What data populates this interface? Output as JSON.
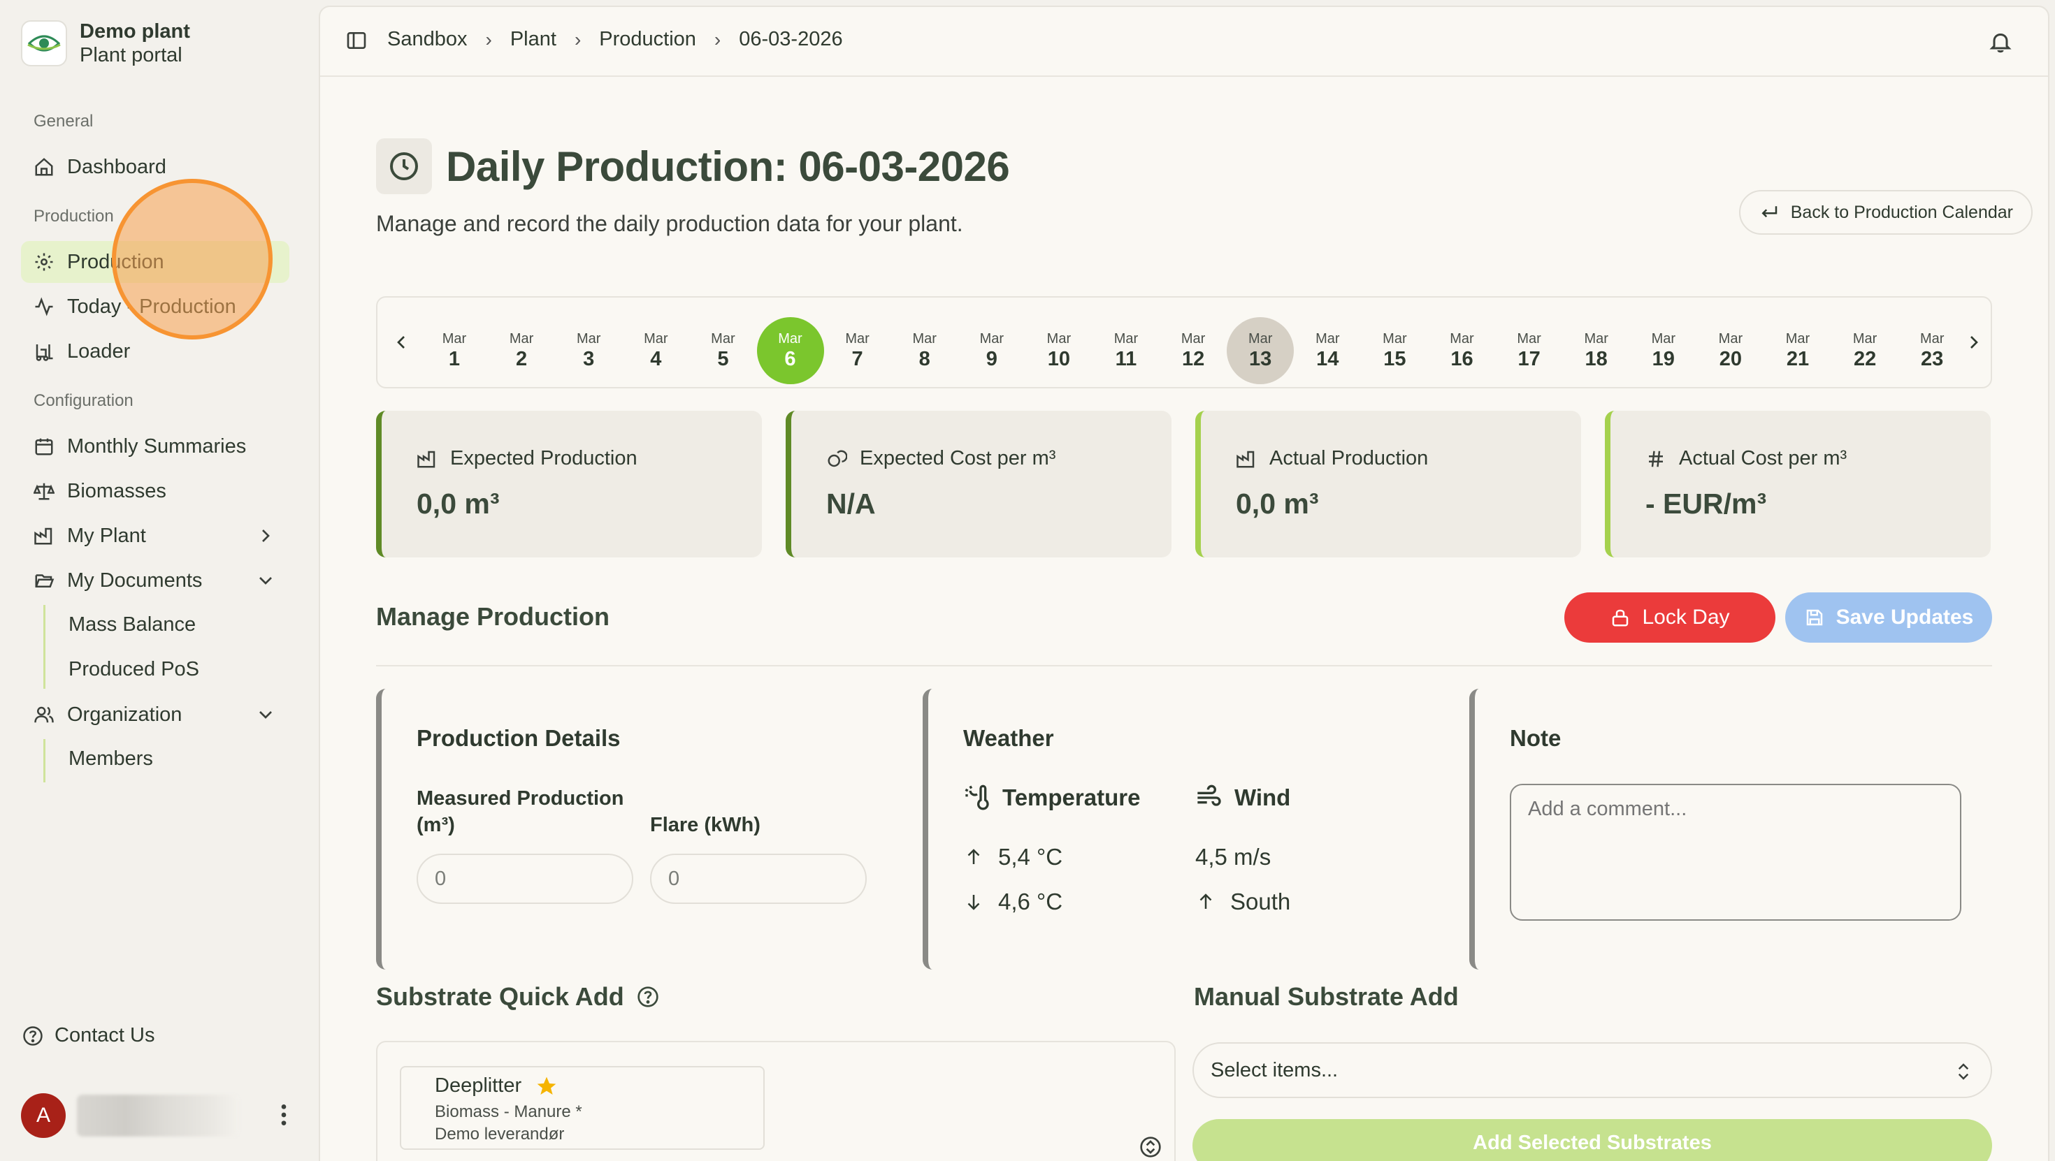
{
  "brand": {
    "name": "Demo plant",
    "subtitle": "Plant portal"
  },
  "sidebar": {
    "general_label": "General",
    "dashboard": "Dashboard",
    "production_label": "Production",
    "production": "Production",
    "today_production": "Today - Production",
    "loader": "Loader",
    "configuration_label": "Configuration",
    "monthly_summaries": "Monthly Summaries",
    "biomasses": "Biomasses",
    "my_plant": "My Plant",
    "my_documents": "My Documents",
    "documents_children": [
      "Mass Balance",
      "Produced PoS"
    ],
    "organization": "Organization",
    "organization_children": [
      "Members"
    ],
    "contact": "Contact Us",
    "user_initial": "A"
  },
  "breadcrumb": [
    "Sandbox",
    "Plant",
    "Production",
    "06-03-2026"
  ],
  "page": {
    "title": "Daily Production: 06-03-2026",
    "subtitle": "Manage and record the daily production data for your plant.",
    "back_button": "Back to Production Calendar"
  },
  "date_strip": {
    "month": "Mar",
    "days": [
      "1",
      "2",
      "3",
      "4",
      "5",
      "6",
      "7",
      "8",
      "9",
      "10",
      "11",
      "12",
      "13",
      "14",
      "15",
      "16",
      "17",
      "18",
      "19",
      "20",
      "21",
      "22",
      "23"
    ],
    "selected_day": "6",
    "today_day": "13"
  },
  "stats": [
    {
      "label": "Expected Production",
      "value": "0,0 m³"
    },
    {
      "label": "Expected Cost per m³",
      "value": "N/A"
    },
    {
      "label": "Actual Production",
      "value": "0,0 m³"
    },
    {
      "label": "Actual Cost per m³",
      "value": "- EUR/m³"
    }
  ],
  "manage": {
    "title": "Manage Production",
    "lock_button": "Lock Day",
    "save_button": "Save Updates"
  },
  "production_details": {
    "title": "Production Details",
    "measured_label": "Measured Production (m³)",
    "measured_placeholder": "0",
    "flare_label": "Flare (kWh)",
    "flare_placeholder": "0"
  },
  "weather": {
    "title": "Weather",
    "temperature_label": "Temperature",
    "wind_label": "Wind",
    "temp_high": "5,4 °C",
    "temp_low": "4,6 °C",
    "wind_speed": "4,5 m/s",
    "wind_direction": "South"
  },
  "note": {
    "title": "Note",
    "placeholder": "Add a comment..."
  },
  "substrate": {
    "quick_title": "Substrate Quick Add",
    "manual_title": "Manual Substrate Add",
    "card_name": "Deeplitter",
    "card_type": "Biomass - Manure *",
    "card_supplier": "Demo leverandør",
    "select_placeholder": "Select items...",
    "add_button": "Add Selected Substrates"
  },
  "colors": {
    "accent": "#7bc62d",
    "danger": "#eb3b3b",
    "disabled_blue": "#9fc3f0",
    "dark_green": "#5f8a26"
  }
}
